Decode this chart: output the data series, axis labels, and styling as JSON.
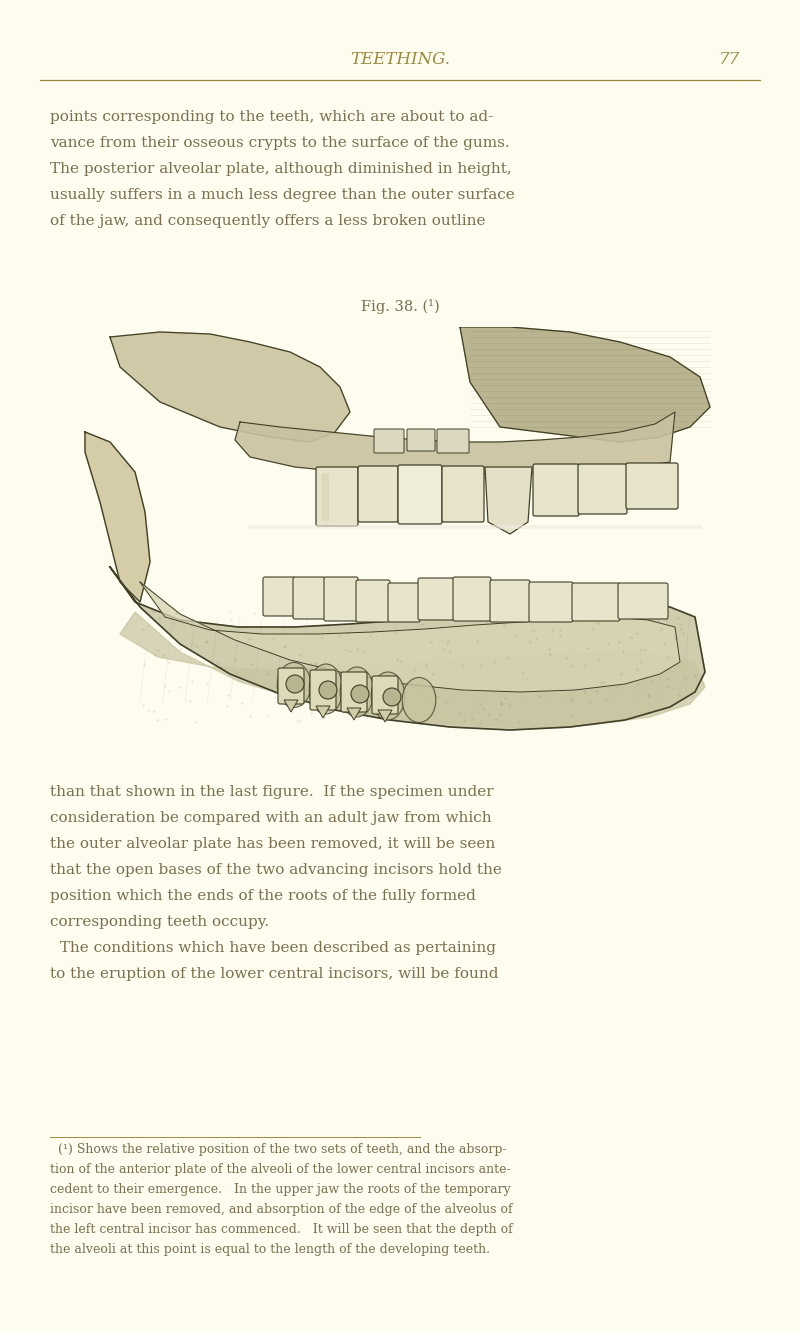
{
  "background_color": "#fdfcee",
  "header_text": "TEETHING.",
  "page_number": "77",
  "header_color": "#9a8a40",
  "body_text_color": "#7a7050",
  "fig_caption": "Fig. 38. (¹)",
  "body_text_top": [
    "points corresponding to the teeth, which are about to ad-",
    "vance from their osseous crypts to the surface of the gums.",
    "The posterior alveolar plate, although diminished in height,",
    "usually suffers in a much less degree than the outer surface",
    "of the jaw, and consequently offers a less broken outline"
  ],
  "body_text_bottom": [
    "than that shown in the last figure.  If the specimen under",
    "consideration be compared with an adult jaw from which",
    "the outer alveolar plate has been removed, it will be seen",
    "that the open bases of the two advancing incisors hold the",
    "position which the ends of the roots of the fully formed",
    "corresponding teeth occupy.",
    "  The conditions which have been described as pertaining",
    "to the eruption of the lower central incisors, will be found"
  ],
  "footnote_text": [
    "  (¹) Shows the relative position of the two sets of teeth, and the absorp-",
    "tion of the anterior plate of the alveoli of the lower central incisors ante-",
    "cedent to their emergence.   In the upper jaw the roots of the temporary",
    "incisor have been removed, and absorption of the edge of the alveolus of",
    "the left central incisor has commenced.   It will be seen that the depth of",
    "the alveoli at this point is equal to the length of the developing teeth."
  ],
  "font_size_header": 12,
  "font_size_body": 11,
  "font_size_caption": 10.5,
  "font_size_footnote": 9,
  "line_color": "#9a8a40"
}
